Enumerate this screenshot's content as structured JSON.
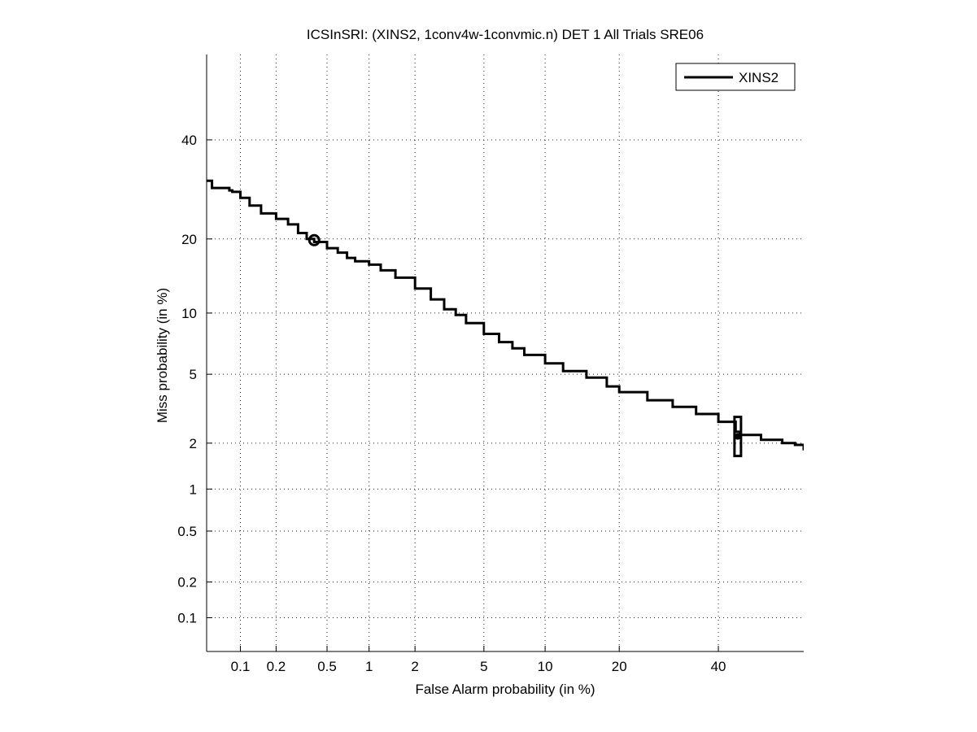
{
  "chart_data": {
    "type": "line",
    "title": "ICSInSRI: (XINS2, 1conv4w-1convmic.n) DET 1 All Trials SRE06",
    "xlabel": "False Alarm probability (in %)",
    "ylabel": "Miss probability (in %)",
    "x_scale": "normal-deviate (probit)",
    "y_scale": "normal-deviate (probit)",
    "xlim": [
      0.05,
      60
    ],
    "ylim": [
      0.05,
      60
    ],
    "x_ticks": [
      0.1,
      0.2,
      0.5,
      1,
      2,
      5,
      10,
      20,
      40
    ],
    "y_ticks": [
      0.1,
      0.2,
      0.5,
      1,
      2,
      5,
      10,
      20,
      40
    ],
    "x_tick_labels": [
      "0.1",
      "0.2",
      "0.5",
      "1",
      "2",
      "5",
      "10",
      "20",
      "40"
    ],
    "y_tick_labels": [
      "0.1",
      "0.2",
      "0.5",
      "1",
      "2",
      "5",
      "10",
      "20",
      "40"
    ],
    "grid": true,
    "legend_position": "top-right",
    "series": [
      {
        "name": "XINS2",
        "color": "#000000",
        "x": [
          0.05,
          0.055,
          0.056,
          0.08,
          0.085,
          0.1,
          0.12,
          0.15,
          0.2,
          0.25,
          0.3,
          0.35,
          0.4,
          0.5,
          0.6,
          0.7,
          0.8,
          1.0,
          1.2,
          1.5,
          2.0,
          2.5,
          3.0,
          3.5,
          4.0,
          5.0,
          6.0,
          7.0,
          8.0,
          10.0,
          12.0,
          15.0,
          18.0,
          20.0,
          25.0,
          30.0,
          35.0,
          40.0,
          44.0,
          45.0,
          50.0,
          55.0,
          58.0,
          60.0
        ],
        "y": [
          31.0,
          31.0,
          29.5,
          29.0,
          28.7,
          27.5,
          26.0,
          24.5,
          23.5,
          22.5,
          21.0,
          20.0,
          19.5,
          18.5,
          17.8,
          17.0,
          16.5,
          16.0,
          15.2,
          14.2,
          12.8,
          11.5,
          10.4,
          9.8,
          9.0,
          8.0,
          7.3,
          6.8,
          6.3,
          5.7,
          5.2,
          4.8,
          4.3,
          4.0,
          3.6,
          3.3,
          3.0,
          2.7,
          2.35,
          2.25,
          2.1,
          2.0,
          1.95,
          1.8
        ]
      }
    ],
    "markers": [
      {
        "name": "circle-marker",
        "x": 0.4,
        "y": 19.8
      },
      {
        "name": "box-marker",
        "x": 44.5,
        "y": 2.2
      }
    ]
  }
}
